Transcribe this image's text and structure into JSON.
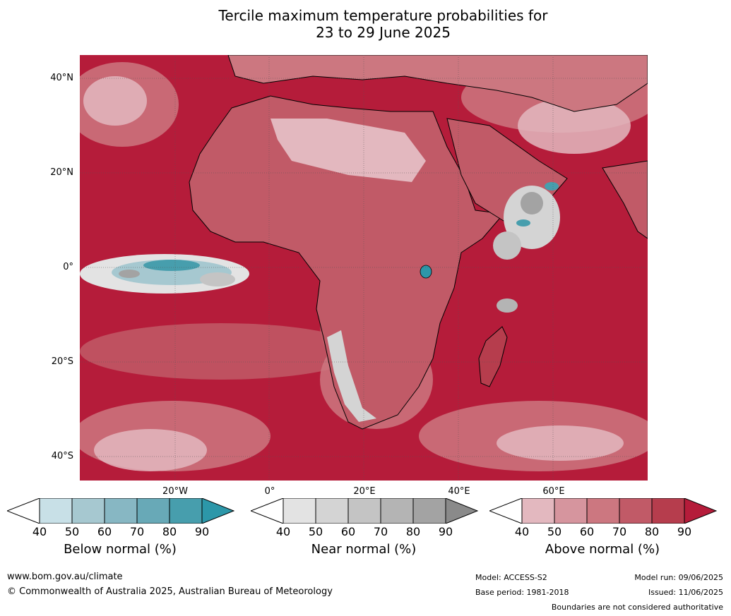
{
  "title": {
    "line1": "Tercile maximum temperature probabilities for",
    "line2": "23 to 29 June 2025"
  },
  "map": {
    "lat_labels": [
      "40°N",
      "20°N",
      "0°",
      "20°S",
      "40°S"
    ],
    "lon_labels": [
      "20°W",
      "0°",
      "20°E",
      "40°E",
      "60°E"
    ],
    "colors": {
      "above": [
        "#e3b8bf",
        "#d6959e",
        "#cc7780",
        "#c15a67",
        "#b63d4d",
        "#b51c3a"
      ],
      "below": [
        "#c8e0e7",
        "#a6c8d0",
        "#87b7c3",
        "#68a9b7",
        "#479ead",
        "#2c97a9"
      ],
      "near": [
        "#e3e3e3",
        "#d4d4d4",
        "#c4c4c4",
        "#b4b4b4",
        "#a3a3a3",
        "#8a8a8a"
      ],
      "land_border": "#7a7a7a",
      "coast": "#000000"
    }
  },
  "colorbars": [
    {
      "label": "Below normal (%)",
      "ticks": [
        "40",
        "50",
        "60",
        "70",
        "80",
        "90"
      ],
      "colors": [
        "#c8e0e7",
        "#a6c8d0",
        "#87b7c3",
        "#68a9b7",
        "#479ead"
      ],
      "extend": "#2c97a9"
    },
    {
      "label": "Near normal (%)",
      "ticks": [
        "40",
        "50",
        "60",
        "70",
        "80",
        "90"
      ],
      "colors": [
        "#e3e3e3",
        "#d4d4d4",
        "#c4c4c4",
        "#b4b4b4",
        "#a3a3a3"
      ],
      "extend": "#8a8a8a"
    },
    {
      "label": "Above normal (%)",
      "ticks": [
        "40",
        "50",
        "60",
        "70",
        "80",
        "90"
      ],
      "colors": [
        "#e3b8bf",
        "#d6959e",
        "#cc7780",
        "#c15a67",
        "#b63d4d"
      ],
      "extend": "#b51c3a"
    }
  ],
  "footer": {
    "website": "www.bom.gov.au/climate",
    "copyright": "© Commonwealth of Australia 2025, Australian Bureau of Meteorology",
    "model": "Model: ACCESS-S2",
    "base_period": "Base period: 1981-2018",
    "model_run": "Model run: 09/06/2025",
    "issued": "Issued: 11/06/2025",
    "disclaimer": "Boundaries are not considered authoritative"
  }
}
